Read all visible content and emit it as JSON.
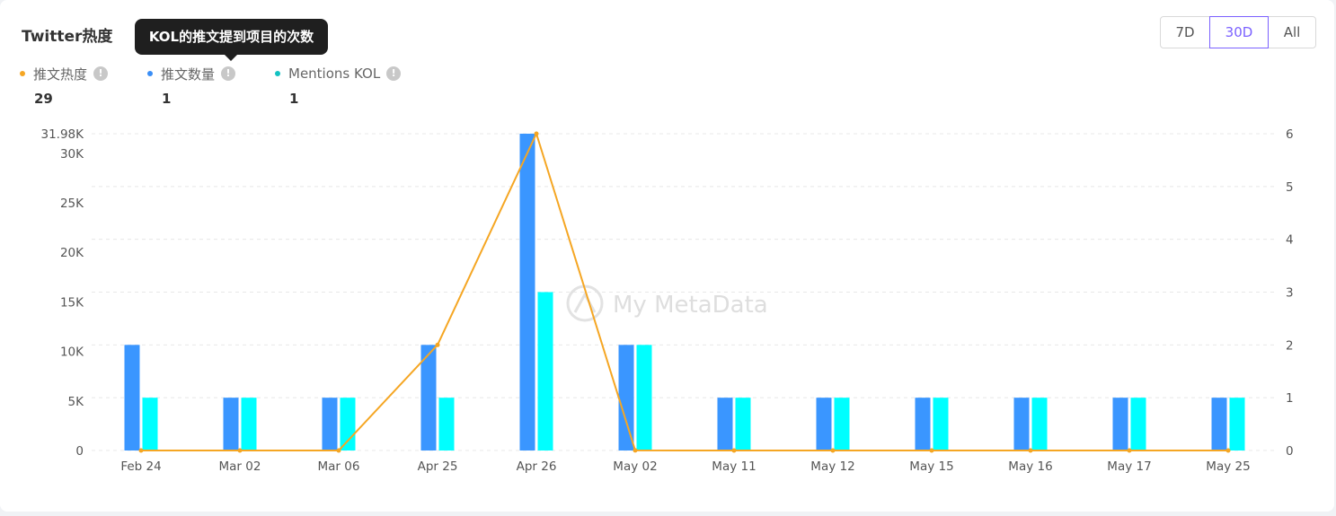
{
  "card": {
    "title": "Twitter热度",
    "tooltip": "KOL的推文提到项目的次数"
  },
  "range_buttons": {
    "d7": "7D",
    "d30": "30D",
    "all": "All",
    "selected": "30D"
  },
  "legend": [
    {
      "label": "推文热度",
      "value": "29",
      "color": "#f5a623"
    },
    {
      "label": "推文数量",
      "value": "1",
      "color": "#3a8ef6"
    },
    {
      "label": "Mentions KOL",
      "value": "1",
      "color": "#13c2c2"
    }
  ],
  "watermark": "My MetaData",
  "chart_data": {
    "type": "bar",
    "categories": [
      "Feb 24",
      "Mar 02",
      "Mar 06",
      "Apr 25",
      "Apr 26",
      "May 02",
      "May 11",
      "May 12",
      "May 15",
      "May 16",
      "May 17",
      "May 25"
    ],
    "series": [
      {
        "name": "推文数量",
        "type": "bar",
        "axis": "right",
        "color": "#3a96ff",
        "values": [
          2,
          1,
          1,
          2,
          6,
          2,
          1,
          1,
          1,
          1,
          1,
          1
        ]
      },
      {
        "name": "Mentions KOL",
        "type": "bar",
        "axis": "right",
        "color": "#00ffff",
        "values": [
          1,
          1,
          1,
          1,
          3,
          2,
          1,
          1,
          1,
          1,
          1,
          1
        ]
      },
      {
        "name": "推文热度",
        "type": "line",
        "axis": "left",
        "color": "#f5a623",
        "values": [
          0,
          0,
          0,
          10660,
          31980,
          10,
          0,
          0,
          0,
          0,
          0,
          0
        ]
      }
    ],
    "left_axis": {
      "ticks": [
        "0",
        "5K",
        "10K",
        "15K",
        "20K",
        "25K",
        "30K",
        "31.98K"
      ],
      "tick_values": [
        0,
        5000,
        10000,
        15000,
        20000,
        25000,
        30000,
        31980
      ],
      "ylim": [
        0,
        31980
      ]
    },
    "right_axis": {
      "ticks": [
        "0",
        "1",
        "2",
        "3",
        "4",
        "5",
        "6"
      ],
      "tick_values": [
        0,
        1,
        2,
        3,
        4,
        5,
        6
      ],
      "ylim": [
        0,
        6
      ]
    },
    "grid": true
  }
}
